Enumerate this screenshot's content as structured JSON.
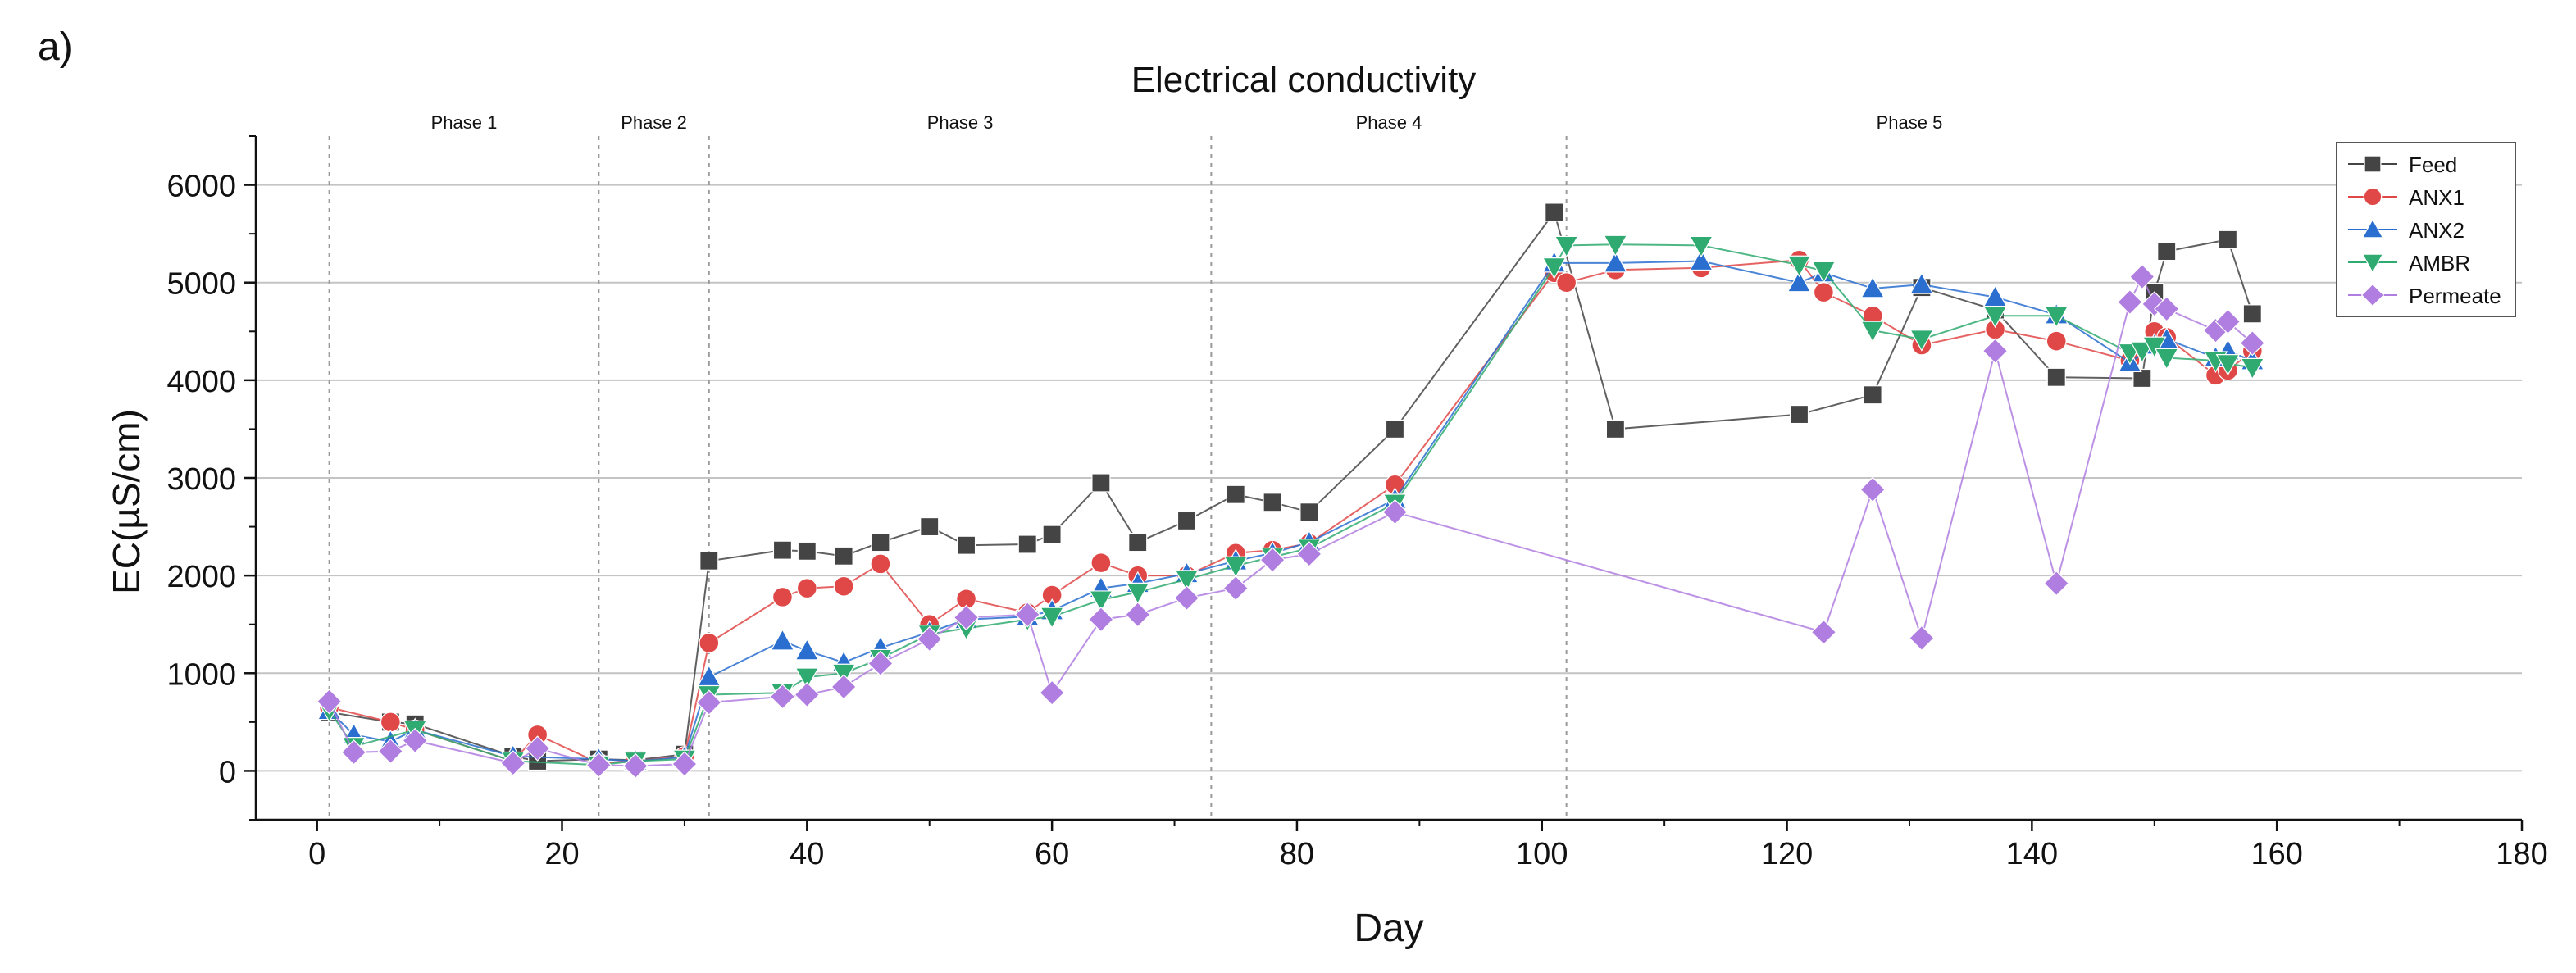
{
  "panel_label": "a)",
  "chart_data": {
    "type": "line",
    "title": "Electrical conductivity",
    "xlabel": "Day",
    "ylabel": "EC(µS/cm)",
    "xlim": [
      -5,
      180
    ],
    "ylim": [
      -500,
      6500
    ],
    "x_ticks": [
      0,
      20,
      40,
      60,
      80,
      100,
      120,
      140,
      160,
      180
    ],
    "y_ticks": [
      0,
      1000,
      2000,
      3000,
      4000,
      5000,
      6000
    ],
    "grid": "horizontal",
    "legend_position": "top-right",
    "phase_dividers": [
      1,
      23,
      32,
      73,
      102
    ],
    "phases": [
      {
        "label": "Phase 1",
        "x": 12
      },
      {
        "label": "Phase 2",
        "x": 27.5
      },
      {
        "label": "Phase 3",
        "x": 52.5
      },
      {
        "label": "Phase 4",
        "x": 87.5
      },
      {
        "label": "Phase 5",
        "x": 130
      }
    ],
    "series": [
      {
        "name": "Feed",
        "color": "#444444",
        "marker": "square",
        "x": [
          1,
          6,
          8,
          16,
          18,
          23,
          26,
          30,
          32,
          38,
          40,
          43,
          46,
          50,
          53,
          58,
          60,
          64,
          67,
          71,
          75,
          78,
          81,
          88,
          101,
          106,
          121,
          127,
          131,
          137,
          142,
          149,
          150,
          151,
          156,
          158
        ],
        "y": [
          600,
          500,
          480,
          150,
          100,
          120,
          110,
          170,
          2150,
          2260,
          2250,
          2200,
          2340,
          2500,
          2310,
          2320,
          2420,
          2950,
          2340,
          2560,
          2830,
          2750,
          2650,
          3500,
          5720,
          3500,
          3650,
          3850,
          4950,
          4720,
          4030,
          4020,
          4900,
          5320,
          5440,
          4680
        ]
      },
      {
        "name": "ANX1",
        "color": "#e04848",
        "marker": "circle",
        "x": [
          1,
          6,
          8,
          16,
          18,
          23,
          26,
          30,
          32,
          38,
          40,
          43,
          46,
          50,
          53,
          58,
          60,
          64,
          67,
          71,
          75,
          78,
          81,
          88,
          101,
          102,
          106,
          113,
          121,
          123,
          127,
          131,
          137,
          142,
          148,
          150,
          151,
          155,
          156,
          158
        ],
        "y": [
          650,
          500,
          420,
          100,
          370,
          80,
          100,
          150,
          1310,
          1780,
          1870,
          1890,
          2120,
          1500,
          1760,
          1620,
          1800,
          2130,
          2000,
          2000,
          2230,
          2260,
          2330,
          2930,
          5100,
          5000,
          5130,
          5150,
          5230,
          4900,
          4660,
          4360,
          4520,
          4400,
          4200,
          4500,
          4440,
          4050,
          4100,
          4300
        ]
      },
      {
        "name": "ANX2",
        "color": "#2a6fd0",
        "marker": "triangle-up",
        "x": [
          1,
          3,
          6,
          8,
          16,
          23,
          26,
          30,
          32,
          38,
          40,
          43,
          46,
          50,
          53,
          58,
          60,
          64,
          67,
          71,
          75,
          78,
          81,
          88,
          101,
          106,
          113,
          121,
          123,
          127,
          131,
          137,
          142,
          148,
          150,
          151,
          155,
          156,
          158
        ],
        "y": [
          620,
          370,
          300,
          420,
          150,
          120,
          100,
          140,
          960,
          1330,
          1230,
          1110,
          1260,
          1420,
          1550,
          1580,
          1640,
          1870,
          1920,
          2020,
          2150,
          2230,
          2340,
          2780,
          5200,
          5200,
          5220,
          5000,
          5100,
          4940,
          4980,
          4850,
          4670,
          4180,
          4360,
          4420,
          4230,
          4300,
          4200
        ]
      },
      {
        "name": "AMBR",
        "color": "#2faa70",
        "marker": "triangle-down",
        "x": [
          1,
          3,
          8,
          16,
          23,
          26,
          30,
          32,
          38,
          40,
          43,
          46,
          50,
          53,
          58,
          60,
          64,
          67,
          71,
          75,
          78,
          81,
          88,
          101,
          102,
          106,
          113,
          121,
          123,
          127,
          131,
          137,
          142,
          148,
          149,
          150,
          151,
          155,
          156,
          158
        ],
        "y": [
          620,
          250,
          420,
          100,
          60,
          100,
          120,
          780,
          800,
          960,
          1000,
          1150,
          1400,
          1460,
          1550,
          1580,
          1750,
          1830,
          1960,
          2100,
          2190,
          2280,
          2740,
          5160,
          5380,
          5390,
          5380,
          5180,
          5120,
          4510,
          4420,
          4660,
          4660,
          4280,
          4300,
          4350,
          4230,
          4200,
          4170,
          4130
        ]
      },
      {
        "name": "Permeate",
        "color": "#b07ee0",
        "marker": "diamond",
        "x": [
          1,
          3,
          6,
          8,
          16,
          18,
          23,
          26,
          30,
          32,
          38,
          40,
          43,
          46,
          50,
          53,
          58,
          60,
          64,
          67,
          71,
          75,
          78,
          81,
          88,
          123,
          127,
          131,
          137,
          142,
          148,
          149,
          150,
          151,
          155,
          156,
          158
        ],
        "y": [
          710,
          190,
          200,
          310,
          80,
          230,
          60,
          50,
          70,
          700,
          760,
          780,
          860,
          1100,
          1350,
          1570,
          1600,
          800,
          1550,
          1600,
          1770,
          1870,
          2160,
          2220,
          2650,
          1420,
          2880,
          1360,
          4300,
          1920,
          4800,
          5060,
          4780,
          4730,
          4510,
          4600,
          4380
        ]
      }
    ]
  }
}
